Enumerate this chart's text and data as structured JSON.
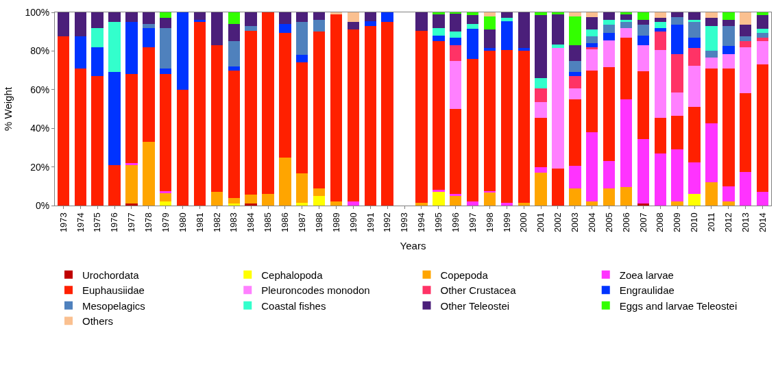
{
  "chart_data": {
    "type": "bar",
    "stacked": true,
    "xlabel": "Years",
    "ylabel": "% Weight",
    "legend": "bottom",
    "categories": [
      "1973",
      "1974",
      "1975",
      "1976",
      "1977",
      "1978",
      "1979",
      "1980",
      "1981",
      "1982",
      "1983",
      "1984",
      "1985",
      "1986",
      "1987",
      "1988",
      "1989",
      "1990",
      "1991",
      "1992",
      "1993",
      "1994",
      "1995",
      "1996",
      "1997",
      "1998",
      "1999",
      "2000",
      "2001",
      "2002",
      "2003",
      "2004",
      "2005",
      "2006",
      "2007",
      "2008",
      "2009",
      "2010",
      "2011",
      "2012",
      "2013",
      "2014"
    ],
    "ylim": [
      0,
      100
    ],
    "yticks": [
      {
        "value": 0,
        "label": "0%"
      },
      {
        "value": 20,
        "label": "20%"
      },
      {
        "value": 40,
        "label": "40%"
      },
      {
        "value": 60,
        "label": "60%"
      },
      {
        "value": 80,
        "label": "80%"
      },
      {
        "value": 100,
        "label": "100%"
      }
    ],
    "series": [
      {
        "name": "Urochordata",
        "color": "#c00000",
        "values": [
          0,
          0,
          0,
          0,
          1,
          0,
          0,
          0,
          0,
          0,
          0,
          1,
          0,
          0,
          0,
          0,
          0,
          0,
          0,
          0,
          null,
          0,
          0,
          0,
          0,
          0,
          0,
          0,
          0,
          0,
          0,
          0,
          0,
          0,
          1,
          0,
          0,
          0,
          0,
          0,
          0,
          0
        ]
      },
      {
        "name": "Cephalopoda",
        "color": "#ffff00",
        "values": [
          0,
          0,
          0,
          0,
          0,
          0,
          2,
          0,
          0,
          0,
          1,
          0,
          0,
          0,
          1.5,
          5,
          0,
          0,
          0,
          0,
          null,
          0,
          7,
          0,
          0,
          0,
          0,
          0,
          0,
          0,
          0,
          0,
          0,
          0,
          0,
          0,
          0,
          6,
          0,
          0,
          0,
          0
        ]
      },
      {
        "name": "Copepoda",
        "color": "#ffa500",
        "values": [
          0,
          0,
          0,
          0,
          20,
          33,
          4.5,
          0,
          0,
          7,
          3,
          4.5,
          6,
          25,
          15,
          4,
          2,
          0,
          0,
          0,
          null,
          1.5,
          0,
          5,
          0,
          7,
          0,
          1.5,
          17,
          0,
          9,
          2,
          9,
          9.5,
          0,
          0,
          2,
          0,
          12,
          2,
          0,
          0
        ]
      },
      {
        "name": "Zoea larvae",
        "color": "#ff33ff",
        "values": [
          0,
          0,
          0,
          0,
          1,
          0,
          1,
          0,
          0,
          0,
          0,
          0,
          0,
          0,
          0,
          0,
          0,
          2,
          0,
          0,
          null,
          0,
          1,
          1,
          2,
          0.5,
          1.5,
          0,
          3,
          0,
          11.5,
          36,
          14,
          45.5,
          33.5,
          27,
          27,
          16.5,
          30.5,
          8,
          17.5,
          7
        ]
      },
      {
        "name": "Euphausiidae",
        "color": "#ff2000",
        "values": [
          87.5,
          71,
          67,
          21,
          46,
          49,
          60.5,
          60,
          95,
          76,
          66,
          85,
          94,
          64.5,
          57.5,
          81,
          97,
          89,
          93,
          95,
          null,
          89,
          77,
          44,
          74,
          72.5,
          79,
          78.5,
          25.5,
          19,
          34.5,
          32,
          48.5,
          32,
          35,
          18.5,
          17.5,
          28.5,
          28.5,
          61,
          40.5,
          66
        ]
      },
      {
        "name": "Pleuroncodes monodon",
        "color": "#ff80ff",
        "values": [
          0,
          0,
          0,
          0,
          0,
          0,
          0,
          0,
          0,
          0,
          0,
          0,
          0,
          0,
          0,
          0,
          0,
          0,
          0,
          0,
          null,
          0,
          0,
          25,
          0,
          0,
          0,
          0,
          8,
          62.5,
          5.5,
          11,
          14,
          5,
          13.5,
          35,
          12,
          21.5,
          5.5,
          7.5,
          24,
          12
        ]
      },
      {
        "name": "Other Crustacea",
        "color": "#ff3366",
        "values": [
          0,
          0,
          0,
          0,
          0,
          0,
          0,
          0,
          0,
          0,
          0,
          0,
          0,
          0,
          0,
          0,
          0,
          0,
          0,
          0,
          null,
          0,
          0,
          8,
          0,
          0,
          0,
          0,
          7,
          0,
          6.5,
          1,
          0,
          0,
          0,
          9.5,
          20,
          9,
          0,
          0,
          3,
          2
        ]
      },
      {
        "name": "Engraulidae",
        "color": "#0033ff",
        "values": [
          0,
          16.5,
          15,
          48,
          27,
          10,
          3,
          40,
          1,
          0,
          2,
          0,
          0,
          4.5,
          4,
          0,
          0,
          0,
          2.5,
          5,
          null,
          0,
          3,
          4,
          15.5,
          1.5,
          15,
          1.5,
          0,
          0,
          2,
          2,
          4,
          0,
          5,
          2,
          15,
          5.5,
          0,
          4,
          0,
          0
        ]
      },
      {
        "name": "Mesopelagics",
        "color": "#4f81bd",
        "values": [
          0,
          0,
          0,
          0,
          0,
          2,
          21,
          0,
          0,
          0,
          13,
          2.5,
          0,
          0,
          17,
          6,
          0,
          0,
          0,
          0,
          null,
          0,
          0,
          0,
          0,
          0,
          0,
          0,
          0,
          0,
          6,
          3.5,
          4,
          3,
          5.5,
          0,
          4,
          8,
          3.5,
          10.5,
          2.5,
          2.5
        ]
      },
      {
        "name": "Coastal fishes",
        "color": "#33ffcc",
        "values": [
          0,
          0,
          10,
          26,
          0,
          0,
          0,
          0,
          0,
          0,
          0,
          0,
          0,
          0,
          0,
          0,
          0,
          0,
          0,
          0,
          null,
          0,
          4,
          3,
          2.5,
          0,
          1.5,
          0,
          5.5,
          2,
          0,
          3.5,
          2.5,
          1,
          0,
          3,
          0,
          1,
          13,
          0,
          0,
          2
        ]
      },
      {
        "name": "Other Teleostei",
        "color": "#4b1f7a",
        "values": [
          12.5,
          12.5,
          8,
          5,
          5,
          6,
          5,
          0,
          4,
          17,
          9,
          7,
          0,
          6,
          5,
          4,
          0,
          4,
          4.5,
          0,
          null,
          9.5,
          7,
          9.5,
          4.5,
          9.5,
          3,
          18.5,
          32.5,
          15.5,
          8,
          6.5,
          4,
          3,
          2.5,
          2,
          2.5,
          4,
          4,
          3,
          6,
          7
        ]
      },
      {
        "name": "Eggs and larvae Teleostei",
        "color": "#33ff00",
        "values": [
          0,
          0,
          0,
          0,
          0,
          0,
          3,
          0,
          0,
          0,
          6,
          0,
          0,
          0,
          0,
          0,
          0,
          0,
          0,
          0,
          null,
          0,
          1,
          0.5,
          1.5,
          7,
          0,
          0,
          1.5,
          1,
          15,
          0,
          0,
          1,
          4,
          0,
          0,
          0,
          0,
          4,
          0,
          1.5
        ]
      },
      {
        "name": "Others",
        "color": "#fac090",
        "values": [
          0,
          0,
          0,
          0,
          0,
          0,
          0,
          0,
          0,
          0,
          0,
          0,
          0,
          0,
          0,
          0,
          1,
          5,
          0,
          0,
          null,
          0,
          0,
          0,
          0,
          2,
          0,
          0,
          0,
          0,
          2,
          2.5,
          0,
          0,
          0,
          3,
          0,
          0,
          3,
          0,
          6.5,
          0
        ]
      }
    ]
  }
}
